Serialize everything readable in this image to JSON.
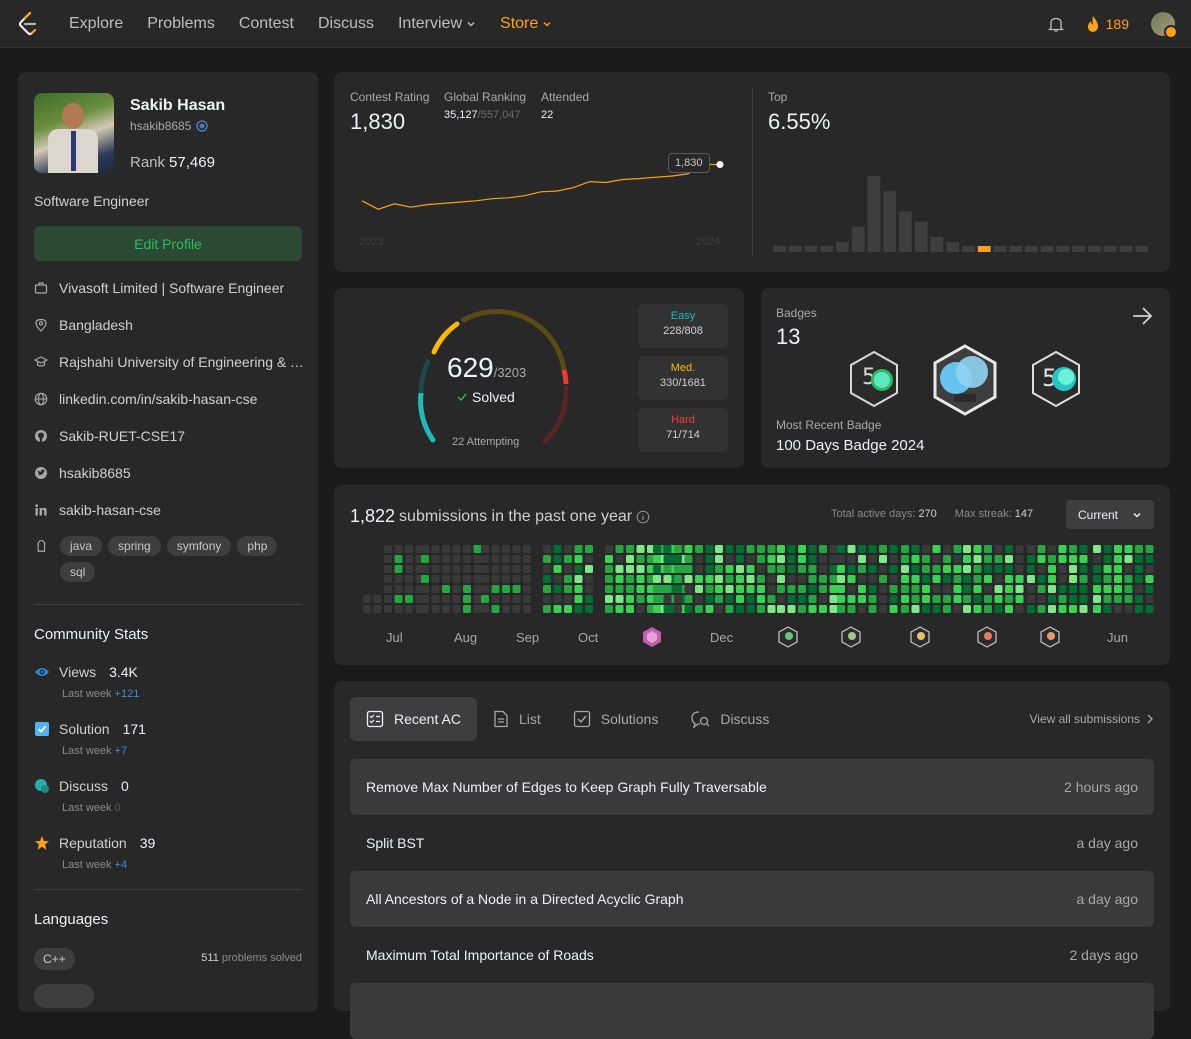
{
  "nav": {
    "links": [
      "Explore",
      "Problems",
      "Contest",
      "Discuss",
      "Interview",
      "Store"
    ],
    "streak_count": "189"
  },
  "profile": {
    "name": "Sakib Hasan",
    "handle": "hsakib8685",
    "rank_label": "Rank",
    "rank": "57,469",
    "title": "Software Engineer",
    "edit_label": "Edit Profile",
    "company": "Vivasoft Limited | Software Engineer",
    "location": "Bangladesh",
    "school": "Rajshahi University of Engineering & Technology",
    "website": "linkedin.com/in/sakib-hasan-cse",
    "github": "Sakib-RUET-CSE17",
    "twitter": "hsakib8685",
    "linkedin": "sakib-hasan-cse",
    "skills": [
      "java",
      "spring",
      "symfony",
      "php",
      "sql"
    ]
  },
  "community": {
    "title": "Community Stats",
    "last_week_label": "Last week",
    "views": {
      "label": "Views",
      "value": "3.4K",
      "delta": "+121"
    },
    "solution": {
      "label": "Solution",
      "value": "171",
      "delta": "+7"
    },
    "discuss": {
      "label": "Discuss",
      "value": "0",
      "delta": "0"
    },
    "reputation": {
      "label": "Reputation",
      "value": "39",
      "delta": "+4"
    }
  },
  "languages": {
    "title": "Languages",
    "items": [
      {
        "name": "C++",
        "count": "511",
        "suffix": "problems solved"
      }
    ]
  },
  "contest": {
    "rating_label": "Contest Rating",
    "rating": "1,830",
    "global_label": "Global Ranking",
    "global_rank": "35,127",
    "global_total": "/557,047",
    "attended_label": "Attended",
    "attended": "22",
    "top_label": "Top",
    "top_value": "6.55%",
    "tooltip": "1,830",
    "year_start": "2023",
    "year_end": "2024",
    "rating_history": [
      1745,
      1725,
      1738,
      1730,
      1736,
      1739,
      1742,
      1745,
      1750,
      1752,
      1757,
      1766,
      1768,
      1776,
      1790,
      1788,
      1795,
      1797,
      1800,
      1803,
      1808,
      1830,
      1830
    ],
    "histogram": [
      1,
      1,
      1,
      1,
      2,
      5,
      15,
      12,
      8,
      6,
      3,
      2,
      1,
      1,
      1,
      1,
      1,
      1,
      1,
      1,
      1,
      1,
      1,
      1
    ],
    "highlight_index": 13
  },
  "solved": {
    "count": "629",
    "total": "/3203",
    "solved_label": "Solved",
    "attempting": "22 Attempting",
    "easy": {
      "label": "Easy",
      "value": "228/808",
      "color": "#1cbaba"
    },
    "medium": {
      "label": "Med.",
      "value": "330/1681",
      "color": "#ffb700"
    },
    "hard": {
      "label": "Hard",
      "value": "71/714",
      "color": "#f63737"
    }
  },
  "badges": {
    "label": "Badges",
    "count": "13",
    "recent_label": "Most Recent Badge",
    "recent_name": "100 Days Badge 2024"
  },
  "submissions": {
    "count": "1,822",
    "text": "submissions in the past one year",
    "active_label": "Total active days:",
    "active_days": "270",
    "streak_label": "Max streak:",
    "max_streak": "147",
    "current_label": "Current",
    "months": [
      "Jul",
      "Aug",
      "Sep",
      "Oct",
      "Dec",
      "Jun"
    ]
  },
  "recent": {
    "tabs": [
      "Recent AC",
      "List",
      "Solutions",
      "Discuss"
    ],
    "view_all": "View all submissions",
    "items": [
      {
        "title": "Remove Max Number of Edges to Keep Graph Fully Traversable",
        "time": "2 hours ago"
      },
      {
        "title": "Split BST",
        "time": "a day ago"
      },
      {
        "title": "All Ancestors of a Node in a Directed Acyclic Graph",
        "time": "a day ago"
      },
      {
        "title": "Maximum Total Importance of Roads",
        "time": "2 days ago"
      }
    ]
  }
}
